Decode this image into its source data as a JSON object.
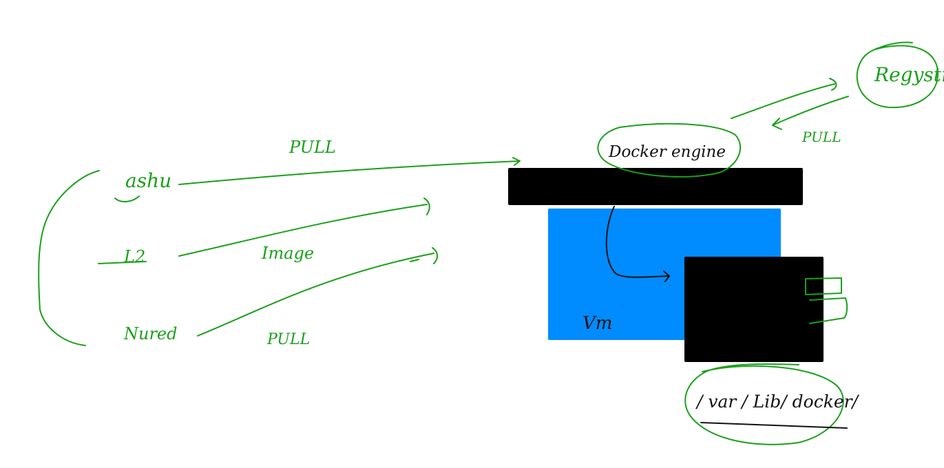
{
  "users": {
    "user1": "ashu",
    "user2": "L2",
    "user3": "Nured"
  },
  "labels": {
    "pull_top": "PULL",
    "image": "Image",
    "pull_bottom": "PULL",
    "pull_registry": "PULL",
    "docker_engine": "Docker engine",
    "registry": "Regystr",
    "vm": "Vm",
    "storage_path": "/ var / Lib/ docker/"
  },
  "colors": {
    "ink_green": "#1aa01a",
    "ink_black": "#111111",
    "vm_blue": "#008cff",
    "engine_black": "#000000"
  }
}
